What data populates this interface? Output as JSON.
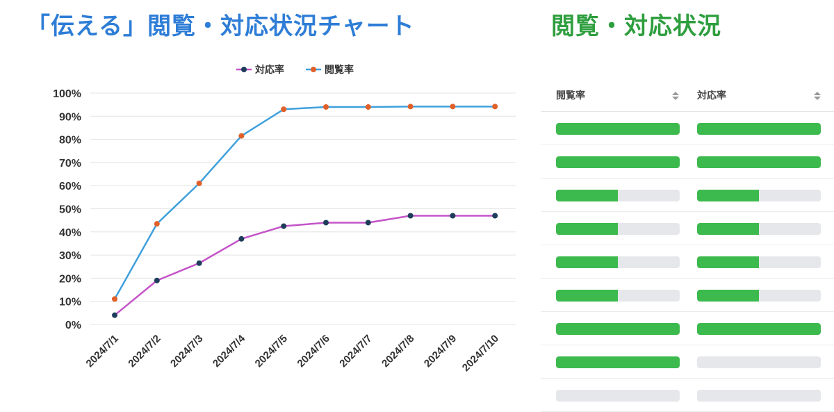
{
  "titles": {
    "left": "「伝える」閲覧・対応状況チャート",
    "right": "閲覧・対応状況"
  },
  "chart_data": {
    "type": "line",
    "categories": [
      "2024/7/1",
      "2024/7/2",
      "2024/7/3",
      "2024/7/4",
      "2024/7/5",
      "2024/7/6",
      "2024/7/7",
      "2024/7/8",
      "2024/7/9",
      "2024/7/10"
    ],
    "series": [
      {
        "name": "対応率",
        "color": "#c454c8",
        "marker": "#1e3d5a",
        "values": [
          4,
          19,
          26.5,
          37,
          42.5,
          44,
          44,
          47,
          47,
          47
        ]
      },
      {
        "name": "閲覧率",
        "color": "#3ea0dc",
        "marker": "#e0602a",
        "values": [
          11,
          43.5,
          61,
          81.5,
          93,
          94,
          94,
          94.2,
          94.2,
          94.2
        ]
      }
    ],
    "yticks": [
      "0%",
      "10%",
      "20%",
      "30%",
      "40%",
      "50%",
      "60%",
      "70%",
      "80%",
      "90%",
      "100%"
    ],
    "ylim": [
      0,
      100
    ],
    "legend": "top",
    "grid": true
  },
  "table": {
    "headers": [
      "閲覧率",
      "対応率"
    ],
    "sort_icon": "sort-updown-icon",
    "bar_color": "#3dba4e",
    "track_color": "#e6e7ea",
    "rows": [
      {
        "view": 1.0,
        "resp": 1.0
      },
      {
        "view": 1.0,
        "resp": 1.0
      },
      {
        "view": 0.5,
        "resp": 0.5
      },
      {
        "view": 0.5,
        "resp": 0.5
      },
      {
        "view": 0.5,
        "resp": 0.5
      },
      {
        "view": 0.5,
        "resp": 0.5
      },
      {
        "view": 1.0,
        "resp": 1.0
      },
      {
        "view": 1.0,
        "resp": 0.0
      },
      {
        "view": 0.0,
        "resp": 0.0
      }
    ]
  }
}
